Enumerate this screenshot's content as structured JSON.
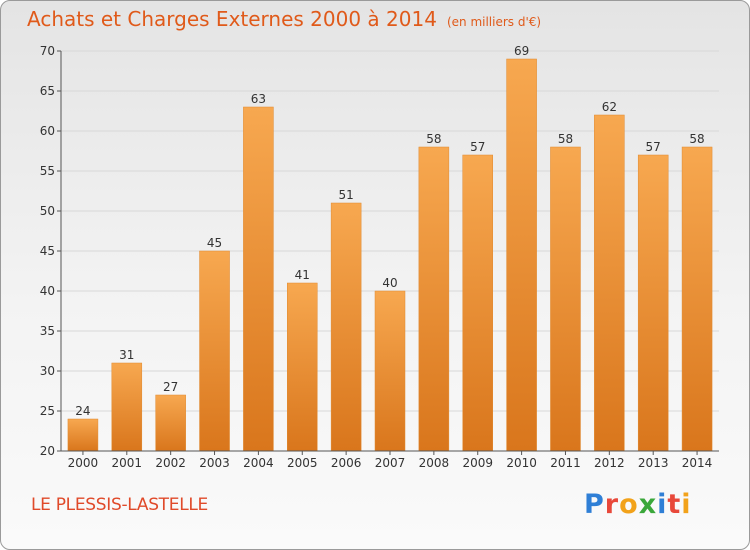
{
  "header": {
    "title": "Achats et Charges Externes 2000 à 2014",
    "unit": "(en milliers d'€)"
  },
  "footer": {
    "place": "LE PLESSIS-LASTELLE",
    "logo_letters": [
      "P",
      "r",
      "o",
      "x",
      "i",
      "t",
      "i"
    ]
  },
  "colors": {
    "bar_light": "#f5a24a",
    "bar_dark": "#d9761c",
    "title": "#e05a1a",
    "grid": "#d8d8d8",
    "axis": "#555555"
  },
  "chart_data": {
    "type": "bar",
    "title": "Achats et Charges Externes 2000 à 2014",
    "subtitle": "(en milliers d'€)",
    "xlabel": "",
    "ylabel": "",
    "categories": [
      "2000",
      "2001",
      "2002",
      "2003",
      "2004",
      "2005",
      "2006",
      "2007",
      "2008",
      "2009",
      "2010",
      "2011",
      "2012",
      "2013",
      "2014"
    ],
    "values": [
      24,
      31,
      27,
      45,
      63,
      41,
      51,
      40,
      58,
      57,
      69,
      58,
      62,
      57,
      58
    ],
    "ylim": [
      20,
      70
    ],
    "yticks": [
      20,
      25,
      30,
      35,
      40,
      45,
      50,
      55,
      60,
      65,
      70
    ],
    "grid": true,
    "legend": "none"
  }
}
